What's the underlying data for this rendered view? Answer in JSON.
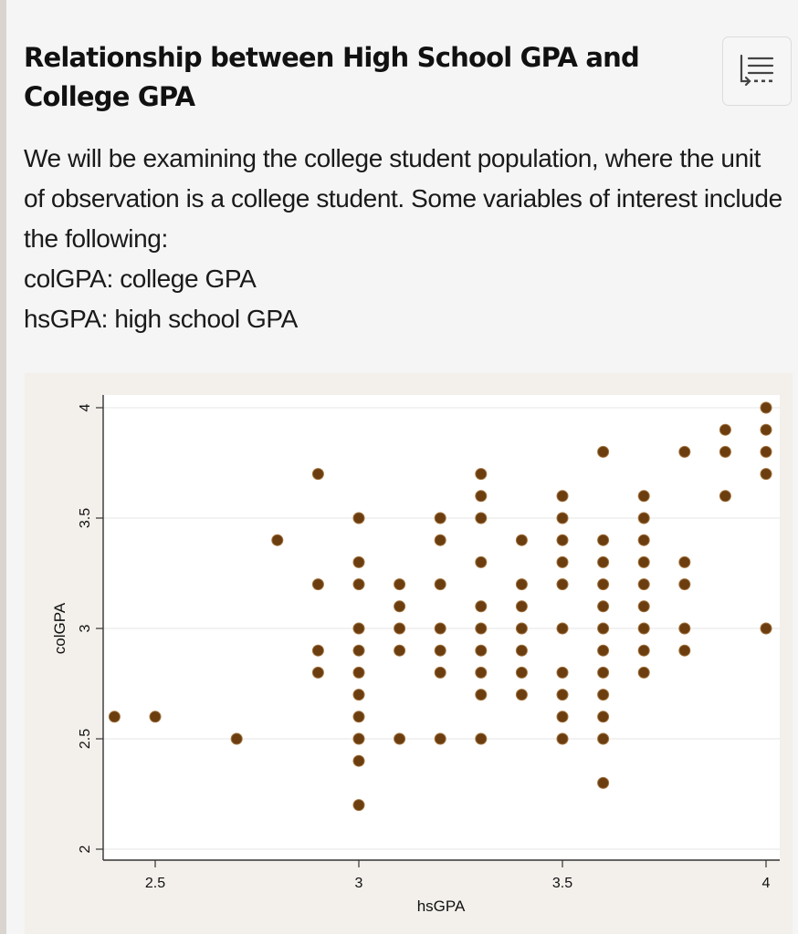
{
  "page": {
    "title": "Relationship between High School GPA and College GPA",
    "toc_button": {
      "icon": "table-of-contents-icon"
    },
    "intro": {
      "paragraph": "We will be examining the college student population, where the unit of observation is a college student. Some variables of interest include the following:",
      "variables": [
        "colGPA: college GPA",
        "hsGPA: high school GPA"
      ]
    }
  },
  "colors": {
    "marker_fill": "#6b3d0f",
    "marker_stroke": "#a0723e",
    "plot_bg": "#ffffff",
    "figure_bg": "#f3f0ec",
    "gridline": "#eaeaea",
    "axis": "#333333"
  },
  "chart_data": {
    "type": "scatter",
    "title": "",
    "xlabel": "hsGPA",
    "ylabel": "colGPA",
    "xlim": [
      2.4,
      4.03
    ],
    "ylim": [
      1.95,
      4.05
    ],
    "xticks": [
      2.5,
      3,
      3.5,
      4
    ],
    "xtick_labels": [
      "2.5",
      "3",
      "3.5",
      "4"
    ],
    "yticks": [
      2,
      2.5,
      3,
      3.5,
      4
    ],
    "ytick_labels": [
      "2",
      "2.5",
      "3",
      "3.5",
      "4"
    ],
    "grid": "horizontal",
    "legend": null,
    "points": [
      [
        2.4,
        2.6
      ],
      [
        2.5,
        2.6
      ],
      [
        2.7,
        2.5
      ],
      [
        2.8,
        3.4
      ],
      [
        2.9,
        3.7
      ],
      [
        2.9,
        3.2
      ],
      [
        2.9,
        2.9
      ],
      [
        2.9,
        2.8
      ],
      [
        3.0,
        3.5
      ],
      [
        3.0,
        3.3
      ],
      [
        3.0,
        3.2
      ],
      [
        3.0,
        3.0
      ],
      [
        3.0,
        2.9
      ],
      [
        3.0,
        2.8
      ],
      [
        3.0,
        2.7
      ],
      [
        3.0,
        2.6
      ],
      [
        3.0,
        2.5
      ],
      [
        3.0,
        2.4
      ],
      [
        3.0,
        2.2
      ],
      [
        3.1,
        3.2
      ],
      [
        3.1,
        3.1
      ],
      [
        3.1,
        3.0
      ],
      [
        3.1,
        2.9
      ],
      [
        3.1,
        2.5
      ],
      [
        3.2,
        3.5
      ],
      [
        3.2,
        3.4
      ],
      [
        3.2,
        3.2
      ],
      [
        3.2,
        3.0
      ],
      [
        3.2,
        2.9
      ],
      [
        3.2,
        2.8
      ],
      [
        3.2,
        2.5
      ],
      [
        3.3,
        3.7
      ],
      [
        3.3,
        3.6
      ],
      [
        3.3,
        3.5
      ],
      [
        3.3,
        3.3
      ],
      [
        3.3,
        3.1
      ],
      [
        3.3,
        3.0
      ],
      [
        3.3,
        2.9
      ],
      [
        3.3,
        2.8
      ],
      [
        3.3,
        2.7
      ],
      [
        3.3,
        2.5
      ],
      [
        3.4,
        3.4
      ],
      [
        3.4,
        3.2
      ],
      [
        3.4,
        3.1
      ],
      [
        3.4,
        3.0
      ],
      [
        3.4,
        2.9
      ],
      [
        3.4,
        2.8
      ],
      [
        3.4,
        2.7
      ],
      [
        3.5,
        3.6
      ],
      [
        3.5,
        3.5
      ],
      [
        3.5,
        3.4
      ],
      [
        3.5,
        3.3
      ],
      [
        3.5,
        3.2
      ],
      [
        3.5,
        3.0
      ],
      [
        3.5,
        2.8
      ],
      [
        3.5,
        2.7
      ],
      [
        3.5,
        2.6
      ],
      [
        3.5,
        2.5
      ],
      [
        3.6,
        3.8
      ],
      [
        3.6,
        3.4
      ],
      [
        3.6,
        3.3
      ],
      [
        3.6,
        3.2
      ],
      [
        3.6,
        3.1
      ],
      [
        3.6,
        3.0
      ],
      [
        3.6,
        2.9
      ],
      [
        3.6,
        2.8
      ],
      [
        3.6,
        2.7
      ],
      [
        3.6,
        2.6
      ],
      [
        3.6,
        2.5
      ],
      [
        3.6,
        2.3
      ],
      [
        3.7,
        3.6
      ],
      [
        3.7,
        3.5
      ],
      [
        3.7,
        3.4
      ],
      [
        3.7,
        3.3
      ],
      [
        3.7,
        3.2
      ],
      [
        3.7,
        3.1
      ],
      [
        3.7,
        3.0
      ],
      [
        3.7,
        2.9
      ],
      [
        3.7,
        2.8
      ],
      [
        3.8,
        3.8
      ],
      [
        3.8,
        3.3
      ],
      [
        3.8,
        3.2
      ],
      [
        3.8,
        3.0
      ],
      [
        3.8,
        2.9
      ],
      [
        3.9,
        3.9
      ],
      [
        3.9,
        3.8
      ],
      [
        3.9,
        3.6
      ],
      [
        4.0,
        4.0
      ],
      [
        4.0,
        3.9
      ],
      [
        4.0,
        3.8
      ],
      [
        4.0,
        3.7
      ],
      [
        4.0,
        3.0
      ]
    ]
  }
}
